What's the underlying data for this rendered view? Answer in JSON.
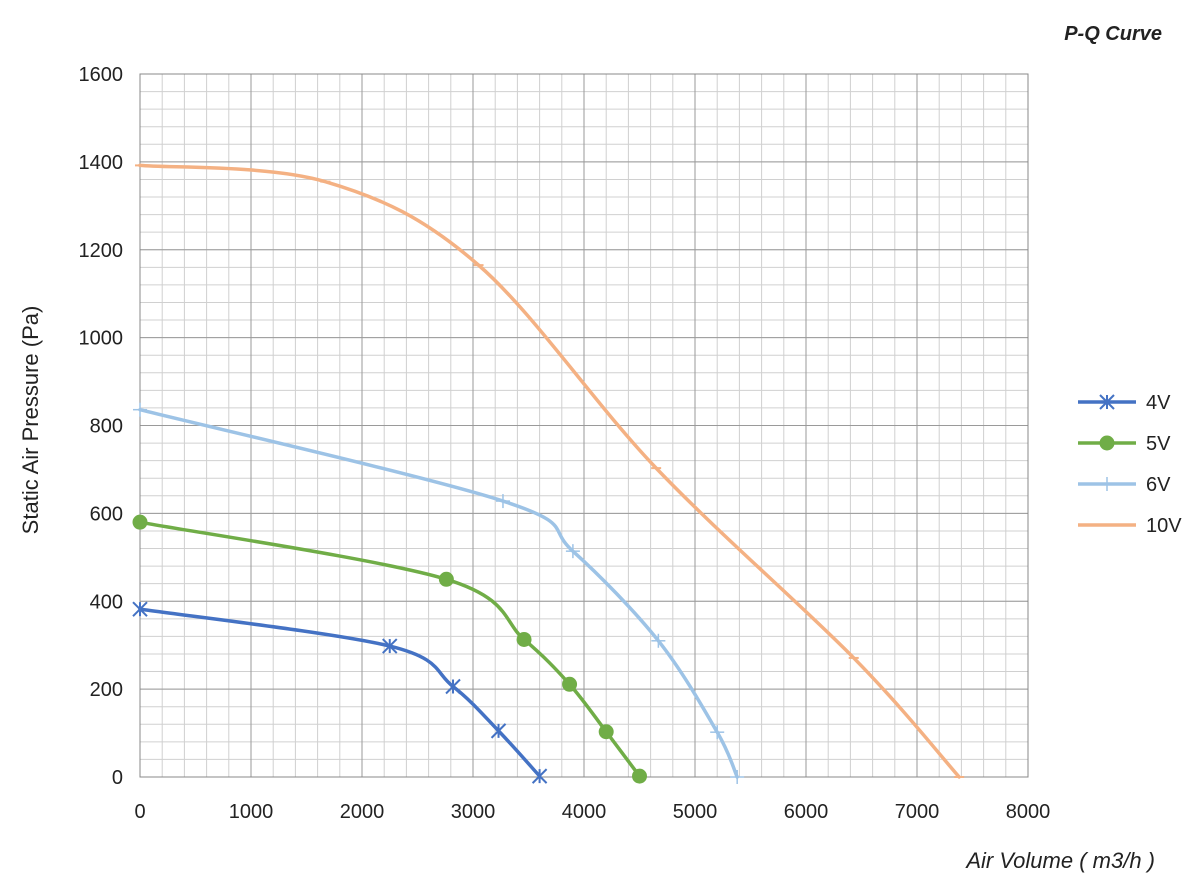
{
  "chart_data": {
    "type": "line",
    "title": "P-Q Curve",
    "xlabel": "Air Volume ( m3/h )",
    "ylabel": "Static Air Pressure  (Pa)",
    "xlim": [
      0,
      8000
    ],
    "ylim": [
      0,
      1600
    ],
    "x_ticks": [
      0,
      1000,
      2000,
      3000,
      4000,
      5000,
      6000,
      7000,
      8000
    ],
    "y_ticks": [
      0,
      200,
      400,
      600,
      800,
      1000,
      1200,
      1400,
      1600
    ],
    "grid": true,
    "legend_position": "right",
    "series": [
      {
        "name": "4V",
        "color": "#4472C4",
        "marker": "asterisk",
        "points": [
          [
            0,
            382
          ],
          [
            2250,
            298
          ],
          [
            2820,
            206
          ],
          [
            3230,
            105
          ],
          [
            3600,
            2
          ]
        ]
      },
      {
        "name": "5V",
        "color": "#70AD47",
        "marker": "circle",
        "points": [
          [
            0,
            580
          ],
          [
            2760,
            450
          ],
          [
            3460,
            313
          ],
          [
            3870,
            211
          ],
          [
            4200,
            103
          ],
          [
            4500,
            2
          ]
        ]
      },
      {
        "name": "6V",
        "color": "#9DC3E6",
        "marker": "plus",
        "points": [
          [
            0,
            836
          ],
          [
            3270,
            628
          ],
          [
            3900,
            514
          ],
          [
            4670,
            310
          ],
          [
            5200,
            102
          ],
          [
            5380,
            0
          ]
        ]
      },
      {
        "name": "10V",
        "color": "#F4B183",
        "marker": "dash",
        "points": [
          [
            0,
            1392
          ],
          [
            1670,
            1355
          ],
          [
            3050,
            1165
          ],
          [
            4650,
            703
          ],
          [
            6430,
            271
          ],
          [
            7380,
            0
          ]
        ]
      }
    ]
  }
}
